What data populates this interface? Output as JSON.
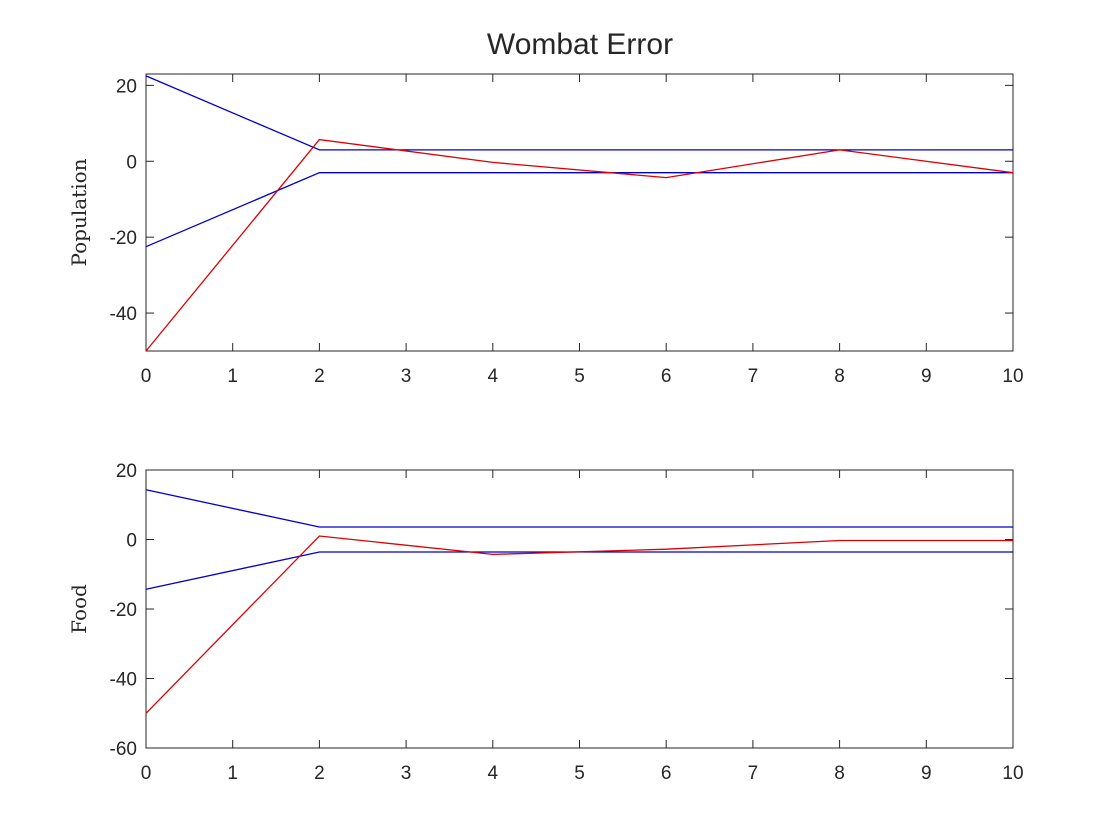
{
  "title": "Wombat Error",
  "colors": {
    "bound": "#0000cc",
    "error": "#dd0000",
    "axis": "#262626"
  },
  "chart_data": [
    {
      "type": "line",
      "title": "Wombat Error",
      "xlabel": "",
      "ylabel": "Population",
      "xlim": [
        0,
        10
      ],
      "ylim": [
        -50,
        23
      ],
      "x_ticks": [
        0,
        1,
        2,
        3,
        4,
        5,
        6,
        7,
        8,
        9,
        10
      ],
      "y_ticks": [
        -40,
        -20,
        0,
        20
      ],
      "grid": false,
      "series": [
        {
          "color": "#0000cc",
          "x": [
            0,
            2,
            10
          ],
          "y": [
            22.5,
            3,
            3
          ]
        },
        {
          "color": "#0000cc",
          "x": [
            0,
            2,
            10
          ],
          "y": [
            -22.5,
            -3,
            -3
          ]
        },
        {
          "color": "#dd0000",
          "x": [
            0,
            2,
            4,
            6,
            8,
            10
          ],
          "y": [
            -50,
            5.7,
            -0.3,
            -4.3,
            3,
            -3
          ]
        }
      ]
    },
    {
      "type": "line",
      "xlabel": "",
      "ylabel": "Food",
      "xlim": [
        0,
        10
      ],
      "ylim": [
        -60,
        20
      ],
      "x_ticks": [
        0,
        1,
        2,
        3,
        4,
        5,
        6,
        7,
        8,
        9,
        10
      ],
      "y_ticks": [
        -60,
        -40,
        -20,
        0,
        20
      ],
      "grid": false,
      "series": [
        {
          "color": "#0000cc",
          "x": [
            0,
            2,
            10
          ],
          "y": [
            14.3,
            3.6,
            3.6
          ]
        },
        {
          "color": "#0000cc",
          "x": [
            0,
            2,
            10
          ],
          "y": [
            -14.3,
            -3.6,
            -3.6
          ]
        },
        {
          "color": "#dd0000",
          "x": [
            0,
            2,
            4,
            6,
            8,
            10
          ],
          "y": [
            -50,
            1,
            -4.3,
            -2.8,
            -0.3,
            -0.3
          ]
        }
      ]
    }
  ]
}
